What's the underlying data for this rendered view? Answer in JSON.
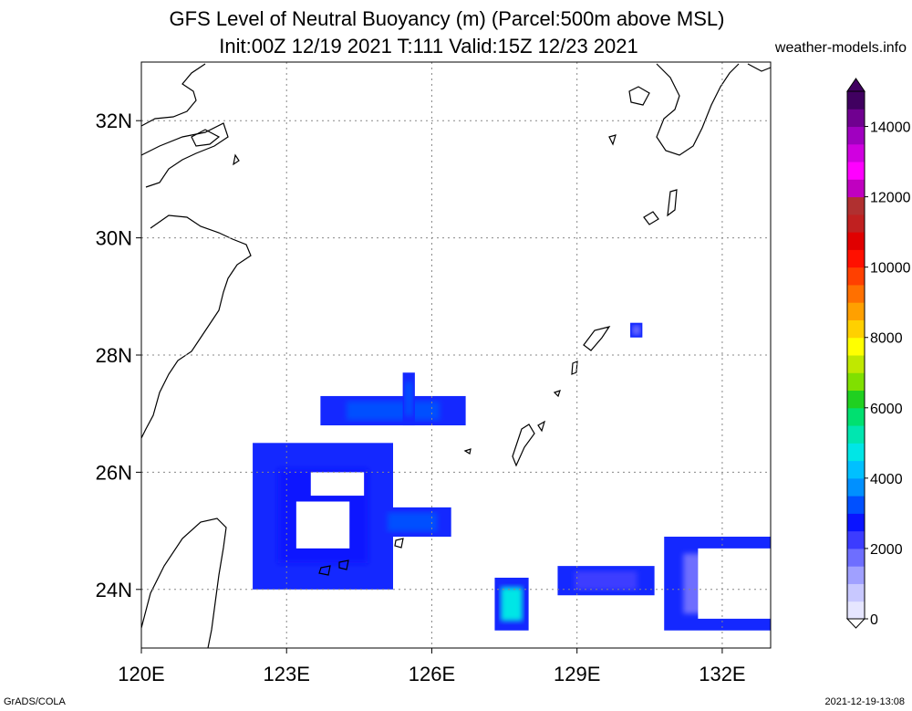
{
  "header": {
    "title_line1": "GFS Level of Neutral Buoyancy (m) (Parcel:500m above MSL)",
    "title_line2": "Init:00Z 12/19 2021 T:111 Valid:15Z 12/23 2021",
    "site": "weather-models.info"
  },
  "footer": {
    "credit": "GrADS/COLA",
    "timestamp": "2021-12-19-13:08"
  },
  "map": {
    "lon_range": [
      120,
      133
    ],
    "lat_range": [
      23,
      33
    ],
    "lon_ticks": [
      {
        "value": 120,
        "label": "120E"
      },
      {
        "value": 123,
        "label": "123E"
      },
      {
        "value": 126,
        "label": "126E"
      },
      {
        "value": 129,
        "label": "129E"
      },
      {
        "value": 132,
        "label": "132E"
      }
    ],
    "lat_ticks": [
      {
        "value": 24,
        "label": "24N"
      },
      {
        "value": 26,
        "label": "26N"
      },
      {
        "value": 28,
        "label": "28N"
      },
      {
        "value": 30,
        "label": "30N"
      },
      {
        "value": 32,
        "label": "32N"
      }
    ],
    "grid": true
  },
  "colorbar": {
    "unit": "m",
    "min": 0,
    "max": 15000,
    "labels": [
      {
        "value": 0,
        "label": "0"
      },
      {
        "value": 2000,
        "label": "2000"
      },
      {
        "value": 4000,
        "label": "4000"
      },
      {
        "value": 6000,
        "label": "6000"
      },
      {
        "value": 8000,
        "label": "8000"
      },
      {
        "value": 10000,
        "label": "10000"
      },
      {
        "value": 12000,
        "label": "12000"
      },
      {
        "value": 14000,
        "label": "14000"
      }
    ],
    "colors": [
      "#e6e6ff",
      "#c8c8ff",
      "#a0a0ff",
      "#6e6eff",
      "#3c3cff",
      "#0a14ff",
      "#0050ff",
      "#0090ff",
      "#00c0ff",
      "#00e6e6",
      "#00e6b0",
      "#00e070",
      "#20d020",
      "#80e000",
      "#c0e800",
      "#ffff00",
      "#ffd000",
      "#ffa000",
      "#ff7000",
      "#ff4000",
      "#ff1000",
      "#e00000",
      "#c02020",
      "#b03030",
      "#c000c0",
      "#ff00ff",
      "#d000e0",
      "#a000c0",
      "#700090",
      "#400060"
    ]
  },
  "cape_regions": [
    {
      "name": "blob-east-china-sea",
      "lon": [
        122.3,
        125.2
      ],
      "lat": [
        24.0,
        26.5
      ],
      "value": 2800
    },
    {
      "name": "band-north",
      "lon": [
        123.7,
        126.7
      ],
      "lat": [
        26.8,
        27.3
      ],
      "value": 3400
    },
    {
      "name": "band-north-vertical",
      "lon": [
        125.4,
        125.65
      ],
      "lat": [
        26.8,
        27.7
      ],
      "value": 3200
    },
    {
      "name": "band-middle",
      "lon": [
        124.8,
        126.4
      ],
      "lat": [
        24.9,
        25.4
      ],
      "value": 3300
    },
    {
      "name": "patch-128E",
      "lon": [
        127.3,
        128.0
      ],
      "lat": [
        23.3,
        24.2
      ],
      "value": 4800
    },
    {
      "name": "band-southeast",
      "lon": [
        128.6,
        130.6
      ],
      "lat": [
        23.9,
        24.4
      ],
      "value": 2400
    },
    {
      "name": "arc-132E",
      "lon": [
        130.8,
        133.0
      ],
      "lat": [
        23.3,
        24.9
      ],
      "value": 1800
    },
    {
      "name": "spot-130E",
      "lon": [
        130.1,
        130.35
      ],
      "lat": [
        28.3,
        28.55
      ],
      "value": 1600
    }
  ]
}
